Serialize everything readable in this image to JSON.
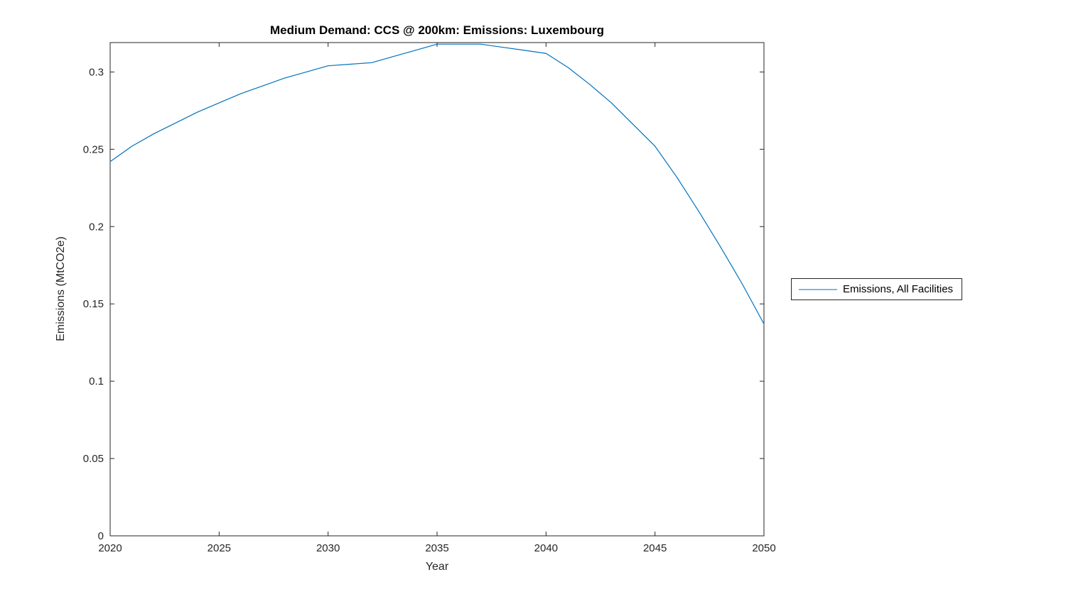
{
  "chart_data": {
    "type": "line",
    "title": "Medium Demand: CCS @ 200km: Emissions: Luxembourg",
    "xlabel": "Year",
    "ylabel": "Emissions (MtCO2e)",
    "xlim": [
      2020,
      2050
    ],
    "ylim": [
      0,
      0.319
    ],
    "xticks": [
      2020,
      2025,
      2030,
      2035,
      2040,
      2045,
      2050
    ],
    "xtick_labels": [
      "2020",
      "2025",
      "2030",
      "2035",
      "2040",
      "2045",
      "2050"
    ],
    "yticks": [
      0,
      0.05,
      0.1,
      0.15,
      0.2,
      0.25,
      0.3
    ],
    "ytick_labels": [
      "0",
      "0.05",
      "0.1",
      "0.15",
      "0.2",
      "0.25",
      "0.3"
    ],
    "grid": false,
    "legend_position": "right-outside",
    "line_color": "#0072BD",
    "axis_color": "#262626",
    "series": [
      {
        "name": "Emissions, All Facilities",
        "x": [
          2020,
          2021,
          2022,
          2023,
          2024,
          2025,
          2026,
          2027,
          2028,
          2029,
          2030,
          2031,
          2032,
          2033,
          2034,
          2035,
          2036,
          2037,
          2038,
          2039,
          2040,
          2041,
          2042,
          2043,
          2044,
          2045,
          2046,
          2047,
          2048,
          2049,
          2050
        ],
        "values": [
          0.242,
          0.252,
          0.26,
          0.267,
          0.274,
          0.28,
          0.286,
          0.291,
          0.296,
          0.3,
          0.304,
          0.305,
          0.306,
          0.31,
          0.314,
          0.318,
          0.318,
          0.318,
          0.316,
          0.314,
          0.312,
          0.303,
          0.292,
          0.28,
          0.266,
          0.252,
          0.232,
          0.21,
          0.187,
          0.163,
          0.137
        ]
      }
    ],
    "legend": {
      "entries": [
        "Emissions, All Facilities"
      ]
    }
  }
}
